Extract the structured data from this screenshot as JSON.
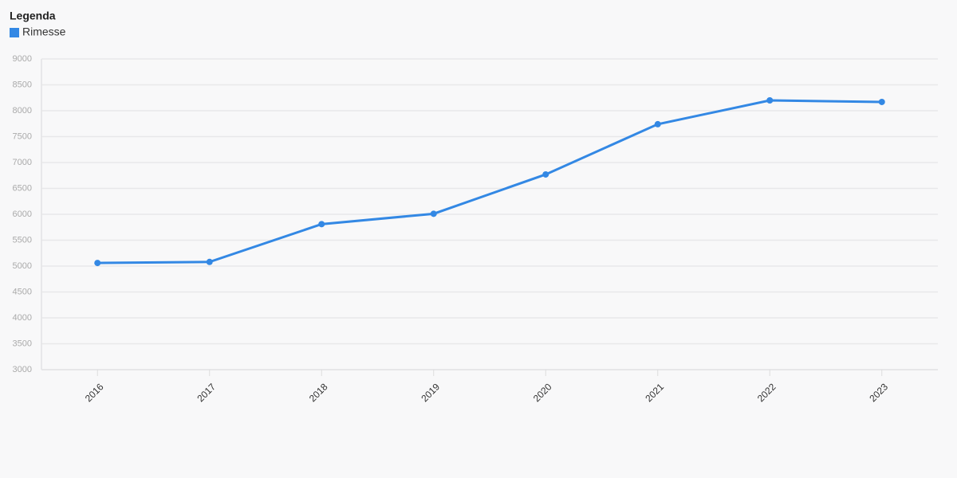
{
  "chart_data": {
    "type": "line",
    "legend_title": "Legenda",
    "categories": [
      "2016",
      "2017",
      "2018",
      "2019",
      "2020",
      "2021",
      "2022",
      "2023"
    ],
    "series": [
      {
        "name": "Rimesse",
        "color": "#3388e4",
        "values": [
          5060,
          5080,
          5810,
          6010,
          6770,
          7740,
          8200,
          8170
        ]
      }
    ],
    "ylim": [
      3000,
      9000
    ],
    "yticks": [
      3000,
      3500,
      4000,
      4500,
      5000,
      5500,
      6000,
      6500,
      7000,
      7500,
      8000,
      8500,
      9000
    ],
    "grid": true,
    "legend": "top-left"
  }
}
